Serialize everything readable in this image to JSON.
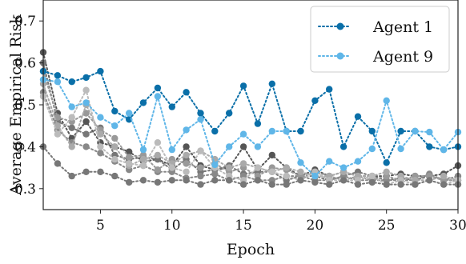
{
  "chart_data": {
    "type": "line",
    "xlabel": "Epoch",
    "ylabel": "Average Empirical Risk",
    "xlim": [
      1,
      30
    ],
    "ylim": [
      0.25,
      0.75
    ],
    "xticks": [
      5,
      10,
      15,
      20,
      25,
      30
    ],
    "yticks": [
      0.3,
      0.4,
      0.5,
      0.6,
      0.7
    ],
    "x": [
      1,
      2,
      3,
      4,
      5,
      6,
      7,
      8,
      9,
      10,
      11,
      12,
      13,
      14,
      15,
      16,
      17,
      18,
      19,
      20,
      21,
      22,
      23,
      24,
      25,
      26,
      27,
      28,
      29,
      30
    ],
    "legend_position": "top-right",
    "series": [
      {
        "name": "Agent 1",
        "color": "#0a6fa8",
        "linestyle": "dotted",
        "values": [
          0.58,
          0.57,
          0.555,
          0.565,
          0.58,
          0.485,
          0.465,
          0.505,
          0.54,
          0.495,
          0.53,
          0.48,
          0.437,
          0.48,
          0.545,
          0.455,
          0.55,
          0.437,
          0.437,
          0.51,
          0.537,
          0.4,
          0.472,
          0.437,
          0.362,
          0.437,
          0.437,
          0.4,
          0.393,
          0.4
        ]
      },
      {
        "name": "Agent 9",
        "color": "#5fb6e8",
        "linestyle": "dotted",
        "values": [
          0.56,
          0.555,
          0.495,
          0.505,
          0.47,
          0.45,
          0.48,
          0.393,
          0.52,
          0.393,
          0.44,
          0.465,
          0.357,
          0.4,
          0.43,
          0.4,
          0.437,
          0.437,
          0.362,
          0.33,
          0.365,
          0.35,
          0.365,
          0.395,
          0.51,
          0.395,
          0.437,
          0.435,
          0.393,
          0.435
        ]
      },
      {
        "color": "#555555",
        "linestyle": "dotted",
        "values": [
          0.625,
          0.48,
          0.42,
          0.46,
          0.41,
          0.4,
          0.388,
          0.365,
          0.37,
          0.355,
          0.4,
          0.355,
          0.345,
          0.35,
          0.4,
          0.345,
          0.38,
          0.35,
          0.33,
          0.345,
          0.33,
          0.34,
          0.33,
          0.33,
          0.33,
          0.335,
          0.33,
          0.33,
          0.335,
          0.355
        ]
      },
      {
        "color": "#777777",
        "linestyle": "dotted",
        "values": [
          0.6,
          0.46,
          0.445,
          0.43,
          0.445,
          0.38,
          0.37,
          0.375,
          0.37,
          0.345,
          0.37,
          0.34,
          0.345,
          0.355,
          0.335,
          0.34,
          0.34,
          0.32,
          0.33,
          0.33,
          0.32,
          0.33,
          0.34,
          0.33,
          0.32,
          0.325,
          0.32,
          0.33,
          0.32,
          0.32
        ]
      },
      {
        "color": "#888888",
        "linestyle": "dotted",
        "values": [
          0.53,
          0.44,
          0.41,
          0.4,
          0.385,
          0.365,
          0.345,
          0.355,
          0.34,
          0.34,
          0.325,
          0.33,
          0.335,
          0.32,
          0.33,
          0.32,
          0.32,
          0.33,
          0.33,
          0.32,
          0.32,
          0.33,
          0.32,
          0.32,
          0.32,
          0.32,
          0.32,
          0.335,
          0.32,
          0.33
        ]
      },
      {
        "color": "#999999",
        "linestyle": "dotted",
        "values": [
          0.58,
          0.47,
          0.46,
          0.48,
          0.44,
          0.42,
          0.375,
          0.38,
          0.345,
          0.37,
          0.36,
          0.35,
          0.36,
          0.34,
          0.35,
          0.33,
          0.35,
          0.345,
          0.33,
          0.34,
          0.33,
          0.32,
          0.33,
          0.32,
          0.33,
          0.32,
          0.33,
          0.33,
          0.32,
          0.32
        ]
      },
      {
        "color": "#aaaaaa",
        "linestyle": "dotted",
        "values": [
          0.55,
          0.45,
          0.4,
          0.5,
          0.43,
          0.4,
          0.355,
          0.37,
          0.38,
          0.36,
          0.38,
          0.39,
          0.37,
          0.35,
          0.36,
          0.35,
          0.34,
          0.35,
          0.34,
          0.33,
          0.33,
          0.34,
          0.33,
          0.33,
          0.34,
          0.33,
          0.32,
          0.32,
          0.33,
          0.32
        ]
      },
      {
        "color": "#bbbbbb",
        "linestyle": "dotted",
        "values": [
          0.52,
          0.43,
          0.47,
          0.535,
          0.4,
          0.37,
          0.36,
          0.355,
          0.41,
          0.35,
          0.34,
          0.39,
          0.35,
          0.33,
          0.32,
          0.35,
          0.34,
          0.33,
          0.32,
          0.34,
          0.32,
          0.32,
          0.32,
          0.33,
          0.31,
          0.32,
          0.31,
          0.32,
          0.31,
          0.32
        ]
      },
      {
        "color": "#777777",
        "linestyle": "dotted",
        "values": [
          0.4,
          0.36,
          0.33,
          0.34,
          0.34,
          0.33,
          0.315,
          0.32,
          0.315,
          0.32,
          0.32,
          0.31,
          0.32,
          0.32,
          0.31,
          0.32,
          0.31,
          0.31,
          0.32,
          0.315,
          0.31,
          0.32,
          0.31,
          0.315,
          0.31,
          0.31,
          0.31,
          0.32,
          0.31,
          0.31
        ]
      }
    ]
  }
}
